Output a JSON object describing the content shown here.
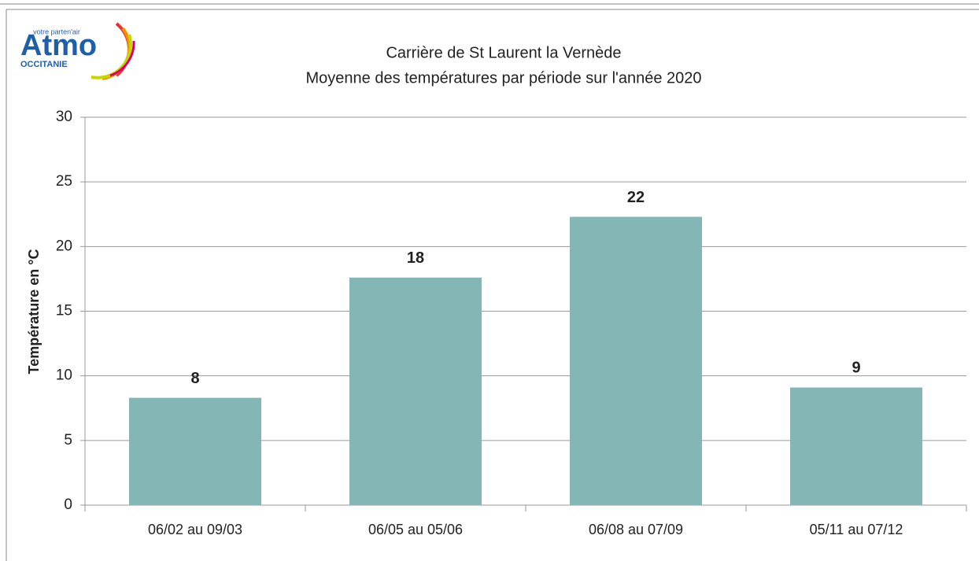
{
  "logo": {
    "brand": "Atmo",
    "tagline": "votre parten'air",
    "region": "OCCITANIE"
  },
  "chart_data": {
    "type": "bar",
    "title": "Carrière de St Laurent la Vernède",
    "subtitle": "Moyenne des températures par période sur l'année 2020",
    "y_label": "Température en °C",
    "categories": [
      "06/02 au 09/03",
      "06/05 au 05/06",
      "06/08 au 07/09",
      "05/11 au 07/12"
    ],
    "values": [
      8.3,
      17.6,
      22.3,
      9.1
    ],
    "value_labels": [
      "8",
      "18",
      "22",
      "9"
    ],
    "color": "#84b6b6",
    "ylim": [
      0,
      30
    ],
    "yticks": [
      0,
      5,
      10,
      15,
      20,
      25,
      30
    ],
    "grid": true
  }
}
